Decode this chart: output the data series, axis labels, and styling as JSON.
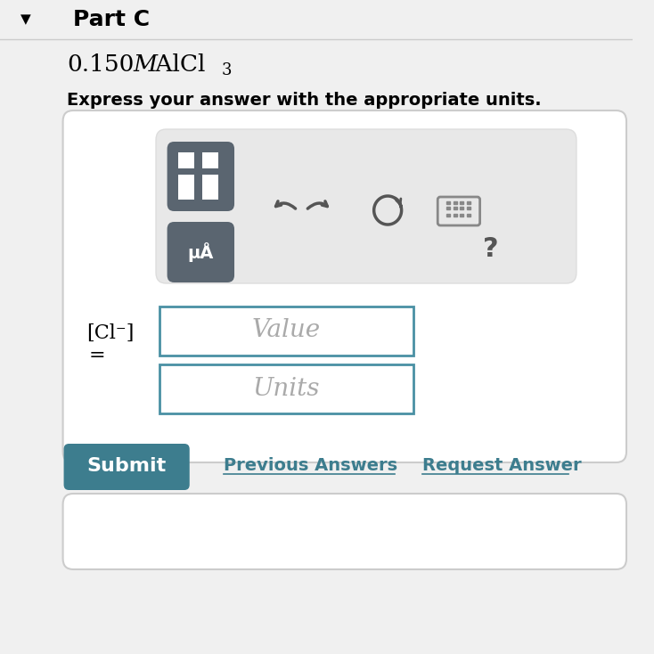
{
  "bg_color": "#f0f0f0",
  "header_bg": "#f0f0f0",
  "part_label": "Part C",
  "arrow_down": "▼",
  "formula_text": "0.150",
  "formula_M": "M",
  "formula_compound": " AlCl",
  "formula_subscript": "3",
  "express_text": "Express your answer with the appropriate units.",
  "toolbar_bg": "#e8e8e8",
  "button_dark": "#5a6570",
  "input_box_color": "#4a90a4",
  "value_placeholder": "Value",
  "units_placeholder": "Units",
  "cl_label": "[Cl⁻]",
  "equals": "=",
  "submit_bg": "#3d7d8e",
  "submit_text": "Submit",
  "prev_answers_text": "Previous Answers",
  "request_answer_text": "Request Answer",
  "link_color": "#3d7d8e",
  "bottom_panel_bg": "#ffffff"
}
